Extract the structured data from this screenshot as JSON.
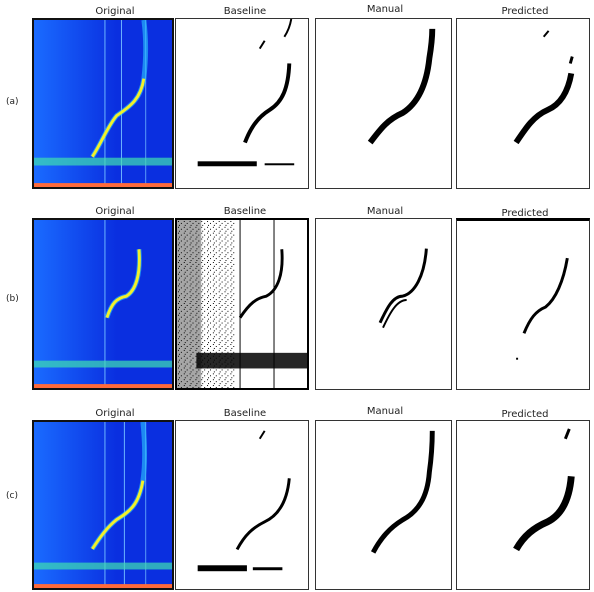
{
  "figure": {
    "column_titles": {
      "a": [
        "Original",
        "Baseline",
        "Manual",
        "Predicted"
      ],
      "b": [
        "Original",
        "Baseline",
        "Manual",
        "Predicted"
      ],
      "c": [
        "Original",
        "Baseline",
        "Manual",
        "Predicted"
      ]
    },
    "row_labels": [
      "(a)",
      "(b)",
      "(c)"
    ]
  },
  "colors": {
    "spectrogram_bg": "#0a2fe0",
    "spectrogram_glow": "#29c6ff",
    "signal": "#f2f02a",
    "mask": "#000000"
  }
}
